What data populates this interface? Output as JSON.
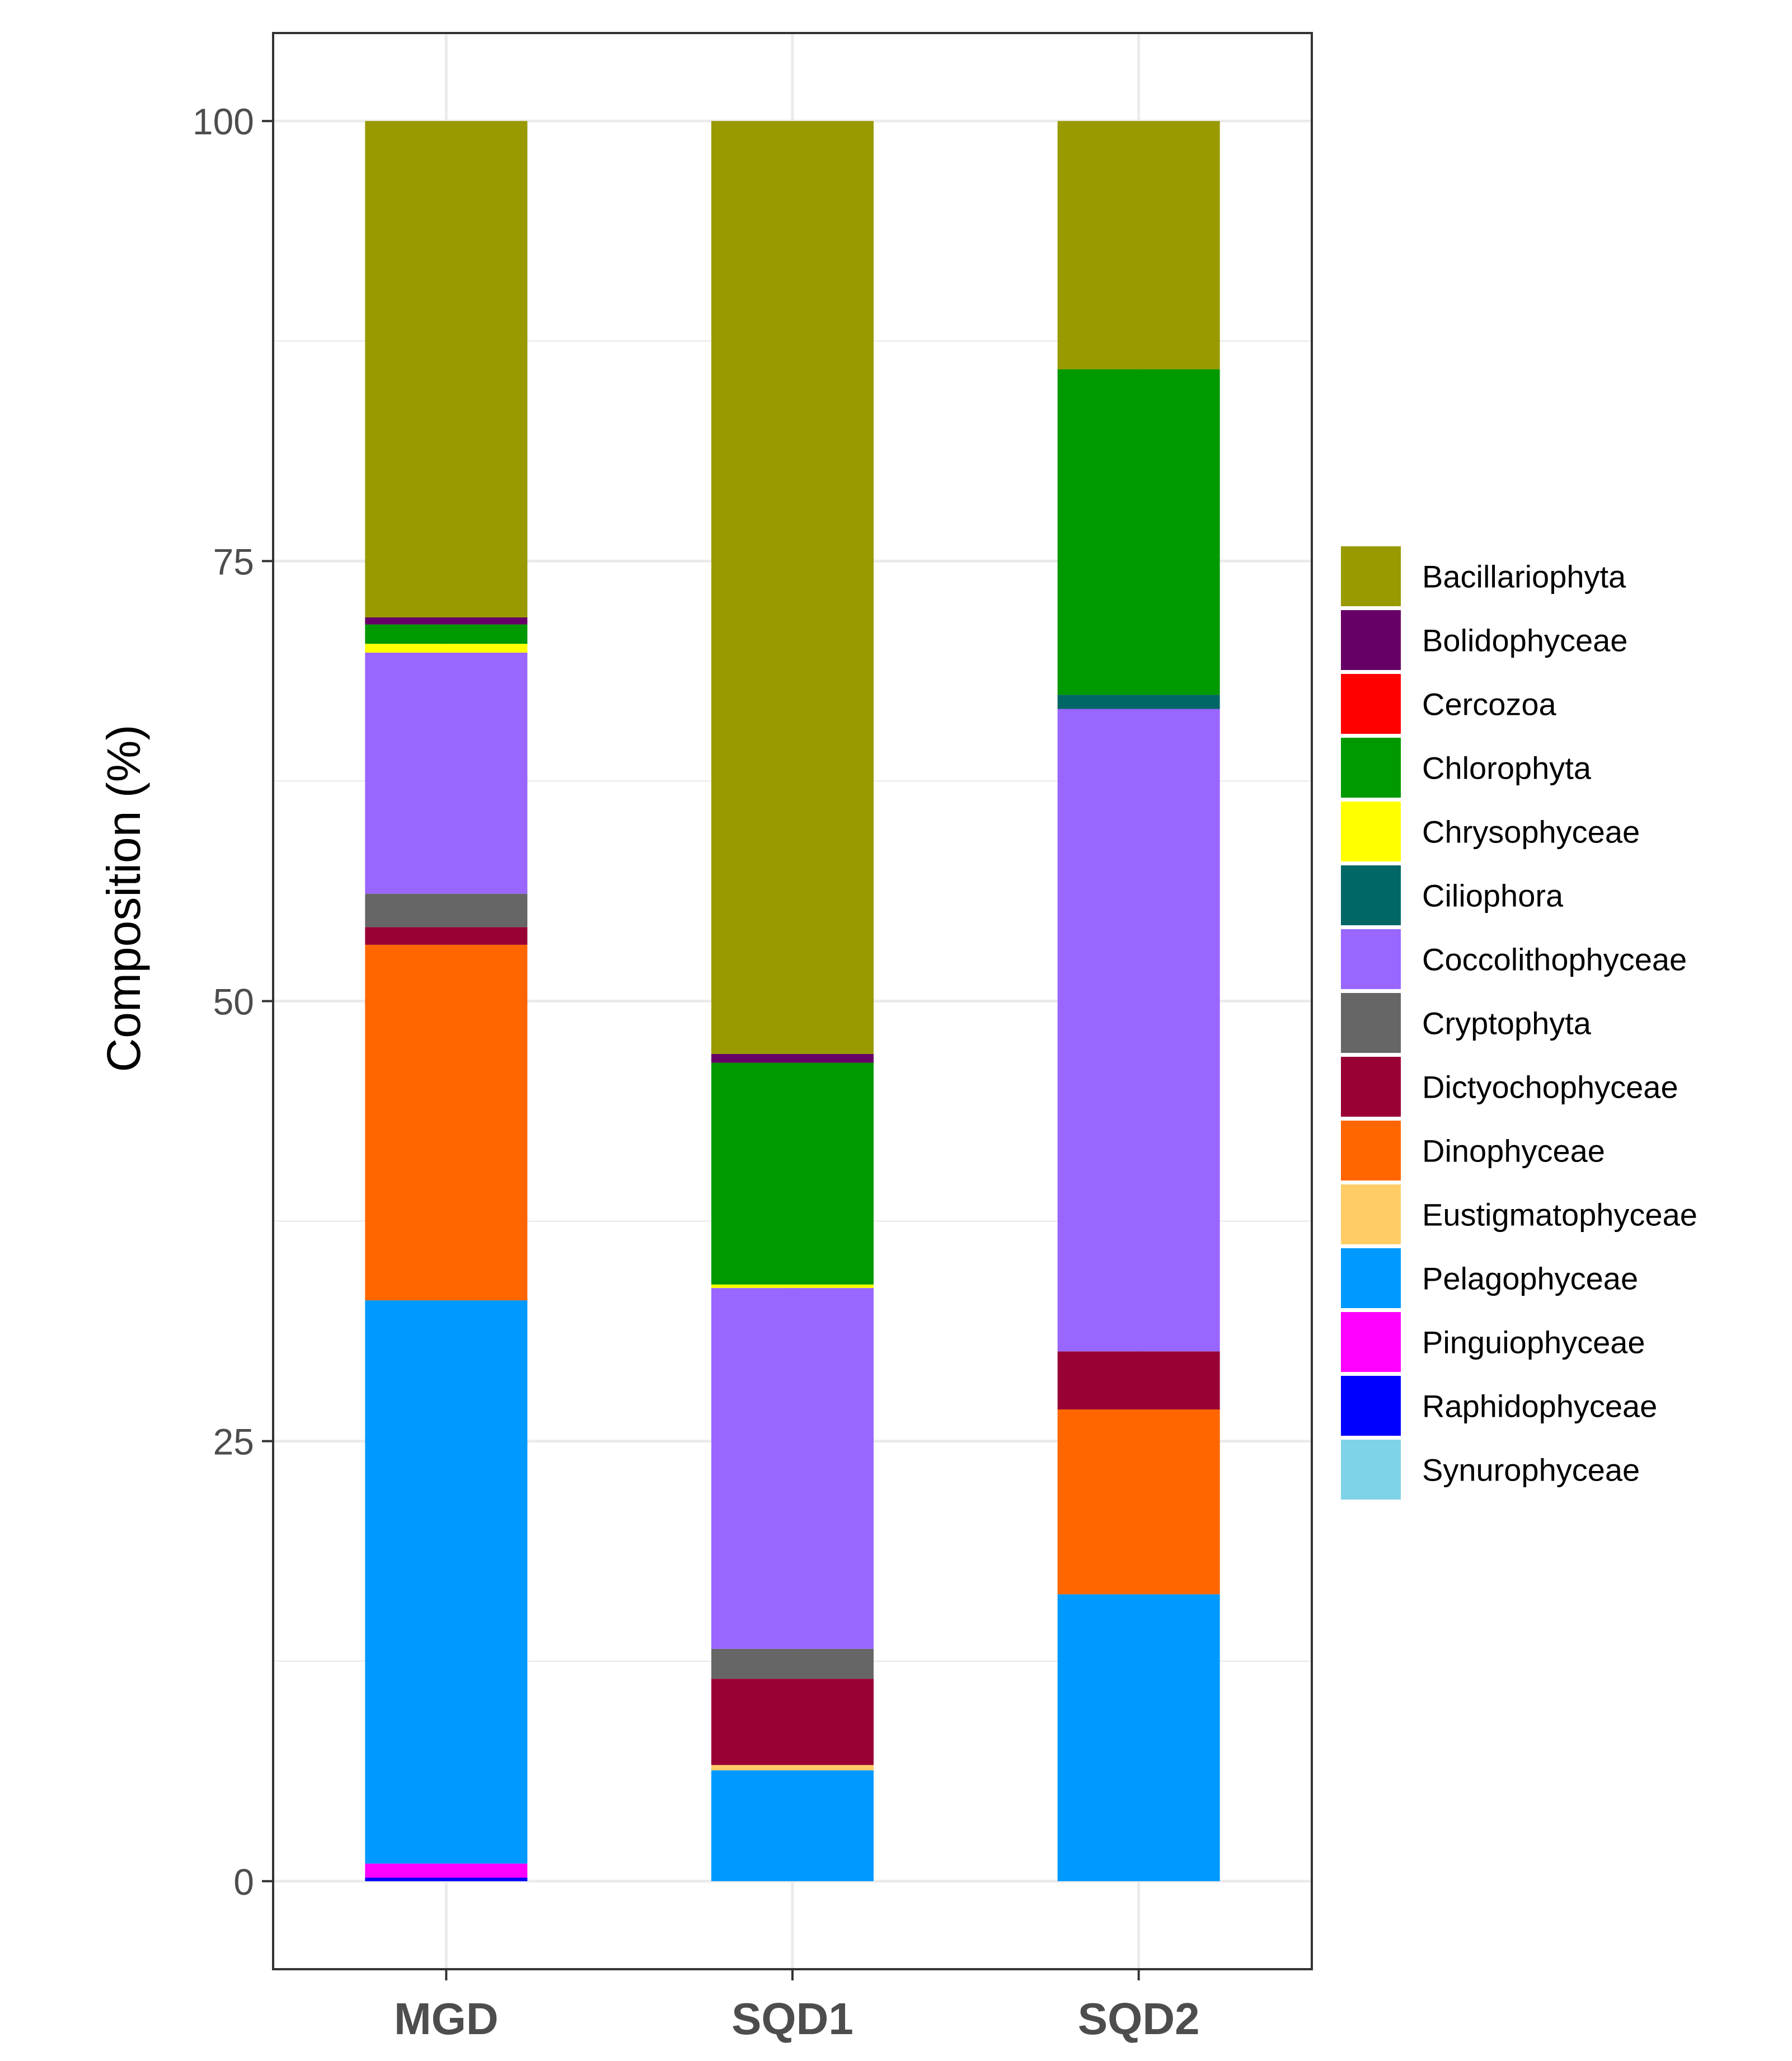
{
  "chart_data": {
    "type": "bar",
    "stacked": true,
    "title": "",
    "xlabel": "",
    "ylabel": "Composition (%)",
    "ylim": [
      -5,
      105
    ],
    "y_ticks": [
      0,
      25,
      50,
      75,
      100
    ],
    "y_tick_labels": [
      "0",
      "25",
      "50",
      "75",
      "100"
    ],
    "grid": true,
    "legend_position": "right",
    "categories": [
      "MGD",
      "SQD1",
      "SQD2"
    ],
    "series": [
      {
        "name": "Synurophyceae",
        "color": "#7FD3E8",
        "values": [
          0,
          0,
          0
        ]
      },
      {
        "name": "Raphidophyceae",
        "color": "#0000FF",
        "values": [
          0.2,
          0,
          0
        ]
      },
      {
        "name": "Pinguiophyceae",
        "color": "#FF00FF",
        "values": [
          0.8,
          0,
          0
        ]
      },
      {
        "name": "Pelagophyceae",
        "color": "#0099FF",
        "values": [
          32,
          6.3,
          16.3
        ]
      },
      {
        "name": "Eustigmatophyceae",
        "color": "#FFCC66",
        "values": [
          0,
          0.3,
          0
        ]
      },
      {
        "name": "Dinophyceae",
        "color": "#FF6600",
        "values": [
          20.2,
          0,
          10.5
        ]
      },
      {
        "name": "Dictyochophyceae",
        "color": "#990033",
        "values": [
          1,
          4.9,
          3.3
        ]
      },
      {
        "name": "Cryptophyta",
        "color": "#666666",
        "values": [
          1.9,
          1.7,
          0
        ]
      },
      {
        "name": "Coccolithophyceae",
        "color": "#9966FF",
        "values": [
          13.7,
          20.5,
          36.5
        ]
      },
      {
        "name": "Ciliophora",
        "color": "#006666",
        "values": [
          0,
          0,
          0.8
        ]
      },
      {
        "name": "Chrysophyceae",
        "color": "#FFFF00",
        "values": [
          0.5,
          0.2,
          0
        ]
      },
      {
        "name": "Chlorophyta",
        "color": "#009900",
        "values": [
          1.1,
          12.6,
          18.5
        ]
      },
      {
        "name": "Cercozoa",
        "color": "#FF0000",
        "values": [
          0,
          0,
          0
        ]
      },
      {
        "name": "Bolidophyceae",
        "color": "#660066",
        "values": [
          0.4,
          0.5,
          0
        ]
      },
      {
        "name": "Bacillariophyta",
        "color": "#999900",
        "values": [
          28.2,
          53,
          14.1
        ]
      }
    ],
    "legend": [
      {
        "name": "Bacillariophyta",
        "color": "#999900"
      },
      {
        "name": "Bolidophyceae",
        "color": "#660066"
      },
      {
        "name": "Cercozoa",
        "color": "#FF0000"
      },
      {
        "name": "Chlorophyta",
        "color": "#009900"
      },
      {
        "name": "Chrysophyceae",
        "color": "#FFFF00"
      },
      {
        "name": "Ciliophora",
        "color": "#006666"
      },
      {
        "name": "Coccolithophyceae",
        "color": "#9966FF"
      },
      {
        "name": "Cryptophyta",
        "color": "#666666"
      },
      {
        "name": "Dictyochophyceae",
        "color": "#990033"
      },
      {
        "name": "Dinophyceae",
        "color": "#FF6600"
      },
      {
        "name": "Eustigmatophyceae",
        "color": "#FFCC66"
      },
      {
        "name": "Pelagophyceae",
        "color": "#0099FF"
      },
      {
        "name": "Pinguiophyceae",
        "color": "#FF00FF"
      },
      {
        "name": "Raphidophyceae",
        "color": "#0000FF"
      },
      {
        "name": "Synurophyceae",
        "color": "#7FD3E8"
      }
    ]
  }
}
